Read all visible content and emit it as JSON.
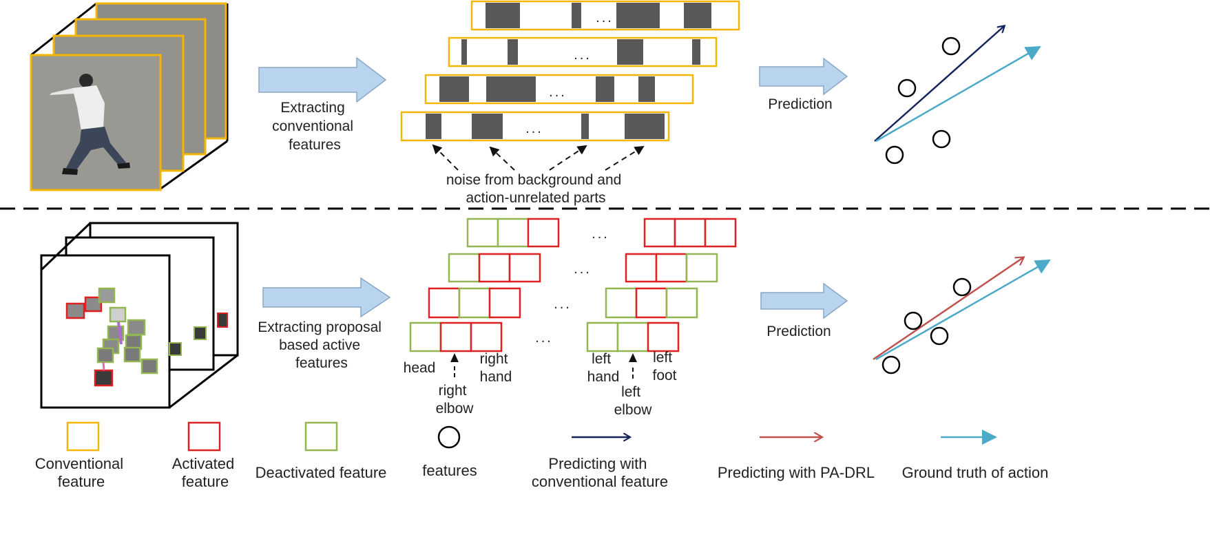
{
  "colors": {
    "conventional": "#f2b705",
    "activated": "#e02020",
    "deactivated": "#93b653",
    "conventional_arrow": "#16245c",
    "pa_drl_arrow": "#c0504d",
    "ground_truth": "#4aaac8",
    "block_arrow": "#b8d4ee",
    "feature_bar": "#595959"
  },
  "top": {
    "extract_label": [
      "Extracting",
      "conventional",
      "features"
    ],
    "ellipsis": "...",
    "noise_label": [
      "noise from background and",
      "action-unrelated parts"
    ],
    "prediction_label": "Prediction"
  },
  "bottom": {
    "extract_label": [
      "Extracting proposal",
      "based active",
      "features"
    ],
    "ellipsis": "...",
    "parts": {
      "head": "head",
      "right_elbow": [
        "right",
        "elbow"
      ],
      "right_hand": [
        "right",
        "hand"
      ],
      "left_hand": [
        "left",
        "hand"
      ],
      "left_elbow": [
        "left",
        "elbow"
      ],
      "left_foot": [
        "left",
        "foot"
      ]
    },
    "prediction_label": "Prediction"
  },
  "legend": {
    "conventional": [
      "Conventional",
      "feature"
    ],
    "activated": [
      "Activated",
      "feature"
    ],
    "deactivated": "Deactivated feature",
    "features": "features",
    "predicting_conventional": [
      "Predicting with",
      "conventional feature"
    ],
    "predicting_pa_drl": "Predicting with PA-DRL",
    "ground_truth": "Ground truth of action"
  }
}
